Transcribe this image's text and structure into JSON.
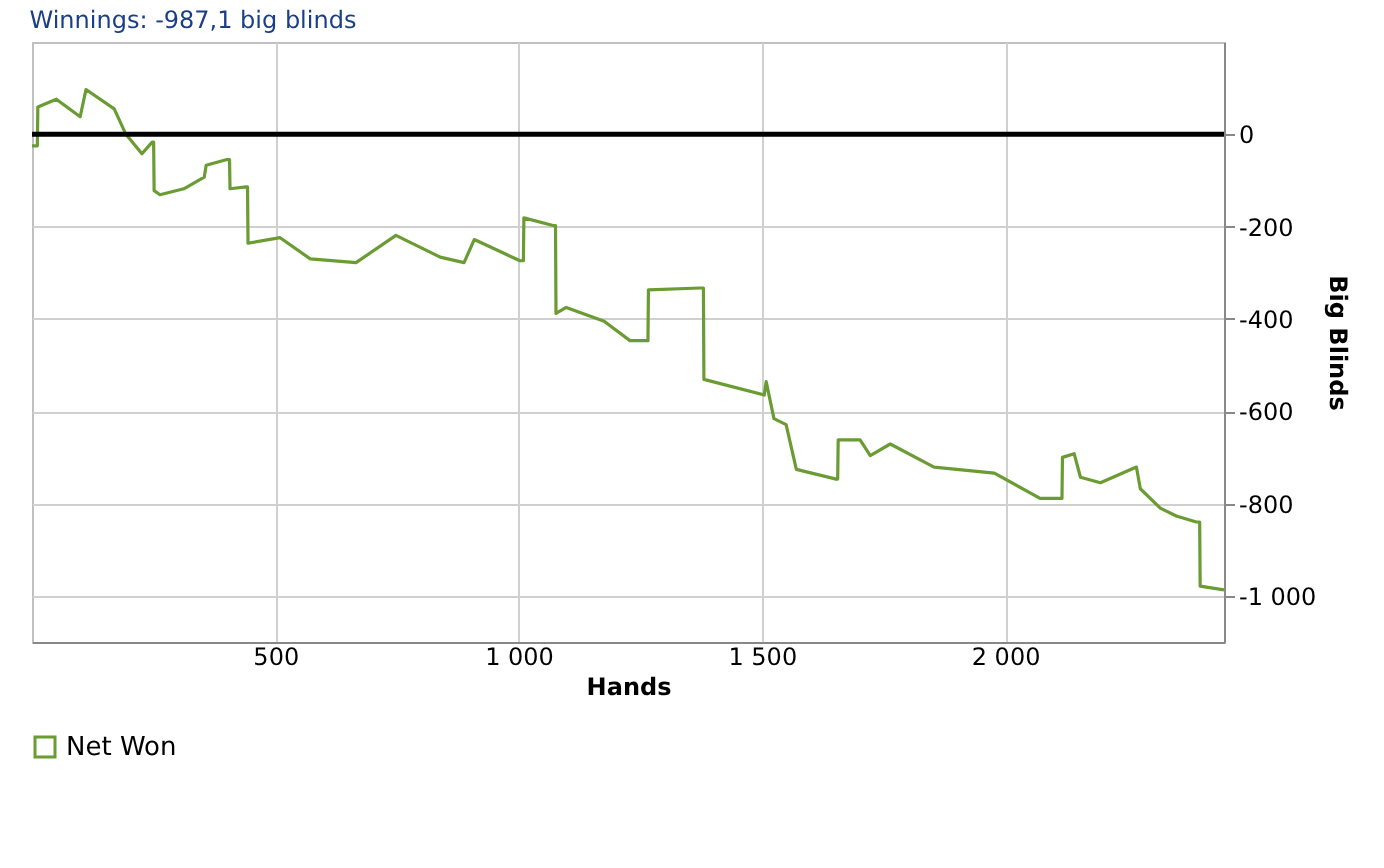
{
  "chart_data": {
    "type": "line",
    "title": "Winnings:  -987,1 big blinds",
    "xlabel": "Hands",
    "ylabel": "Big Blinds",
    "x": [
      0,
      11,
      12,
      50,
      99,
      111,
      169,
      193,
      226,
      247,
      250,
      251,
      263,
      312,
      354,
      358,
      399,
      406,
      407,
      440,
      443,
      444,
      510,
      572,
      666,
      748,
      839,
      888,
      909,
      1003,
      1010,
      1011,
      1073,
      1076,
      1077,
      1098,
      1176,
      1229,
      1262,
      1266,
      1267,
      1373,
      1380,
      1381,
      1505,
      1509,
      1525,
      1550,
      1571,
      1653,
      1656,
      1657,
      1702,
      1723,
      1764,
      1854,
      1978,
      2072,
      2113,
      2117,
      2118,
      2142,
      2155,
      2196,
      2270,
      2278,
      2319,
      2352,
      2393,
      2400,
      2401,
      2450
    ],
    "series": [
      {
        "name": "Net Won",
        "color": "#6a9c33",
        "values": [
          -25,
          -25,
          59,
          76,
          38,
          97,
          55,
          0,
          -42,
          -17,
          -17,
          -122,
          -131,
          -118,
          -93,
          -67,
          -55,
          -55,
          -118,
          -114,
          -114,
          -236,
          -224,
          -270,
          -278,
          -219,
          -266,
          -278,
          -228,
          -274,
          -274,
          -181,
          -198,
          -198,
          -388,
          -375,
          -405,
          -447,
          -447,
          -447,
          -337,
          -333,
          -333,
          -531,
          -565,
          -536,
          -616,
          -629,
          -726,
          -747,
          -747,
          -662,
          -662,
          -696,
          -671,
          -721,
          -734,
          -789,
          -789,
          -789,
          -700,
          -692,
          -743,
          -755,
          -721,
          -768,
          -810,
          -827,
          -840,
          -840,
          -979,
          -987.1
        ]
      }
    ],
    "xlim": [
      0,
      2450
    ],
    "ylim": [
      -1100,
      200
    ],
    "xticks": [
      500,
      {
        "value": 1000,
        "label": "1 000"
      },
      {
        "value": 1500,
        "label": "1 500"
      },
      {
        "value": 2000,
        "label": "2 000"
      }
    ],
    "yticks": [
      0,
      -200,
      -400,
      -600,
      -800,
      {
        "value": -1000,
        "label": "-1 000"
      }
    ],
    "ref_lines": [
      {
        "axis": "y",
        "value": 0,
        "color": "#000000"
      }
    ],
    "grid": true,
    "legend": "bottom"
  }
}
